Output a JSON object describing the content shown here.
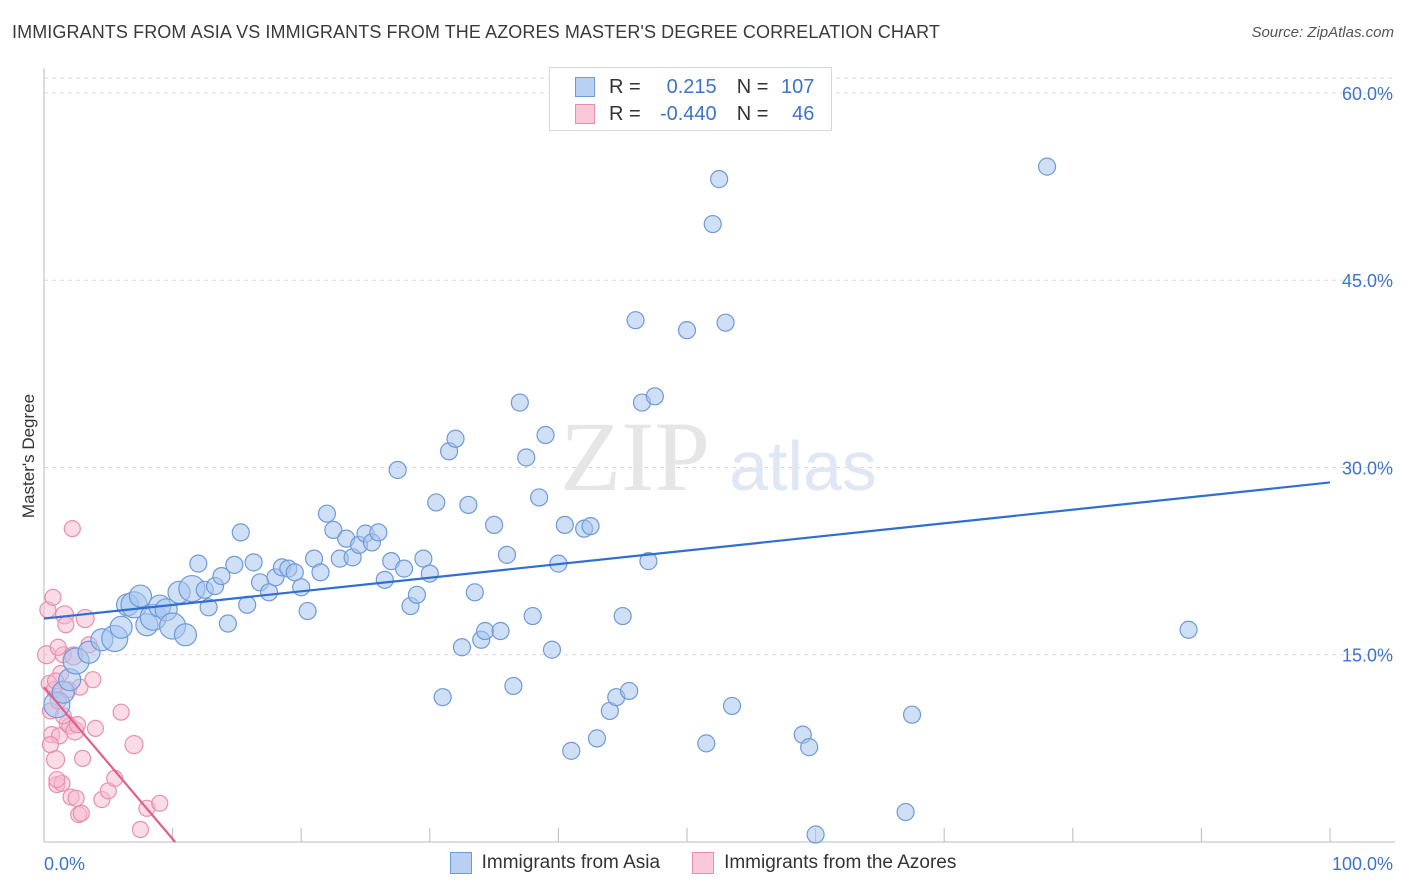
{
  "title": "IMMIGRANTS FROM ASIA VS IMMIGRANTS FROM THE AZORES MASTER'S DEGREE CORRELATION CHART",
  "source": "Source: ZipAtlas.com",
  "watermark": {
    "zip": "ZIP",
    "atlas": "atlas"
  },
  "legend": {
    "rows": [
      {
        "r_label": "R =",
        "r_value": "0.215",
        "n_label": "N =",
        "n_value": "107"
      },
      {
        "r_label": "R =",
        "r_value": "-0.440",
        "n_label": "N =",
        "n_value": "46"
      }
    ]
  },
  "colors": {
    "asia_fill": "#a8c4ee",
    "asia_stroke": "#6f9ad8",
    "asia_line": "#2f6fd0",
    "azores_fill": "#f6b8cd",
    "azores_stroke": "#e88fae",
    "azores_line": "#e0608c",
    "tick_text": "#3d74c9",
    "grid": "#d9d9d9"
  },
  "chart_data": {
    "type": "scatter",
    "title": "IMMIGRANTS FROM ASIA VS IMMIGRANTS FROM THE AZORES MASTER'S DEGREE CORRELATION CHART",
    "xlabel": "",
    "ylabel": "Master's Degree",
    "xlim": [
      0,
      100
    ],
    "ylim": [
      0,
      62
    ],
    "x_tick_labels": [
      "0.0%",
      "100.0%"
    ],
    "y_ticks": [
      15,
      30,
      45,
      60
    ],
    "y_tick_labels": [
      "15.0%",
      "30.0%",
      "45.0%",
      "60.0%"
    ],
    "grid": true,
    "series": [
      {
        "name": "Immigrants from Asia",
        "r": 0.215,
        "n": 107,
        "trend": {
          "x": [
            0,
            100
          ],
          "y": [
            17.9,
            28.8
          ]
        },
        "points": [
          [
            1.0,
            11.0
          ],
          [
            1.5,
            12.0
          ],
          [
            2.0,
            13.0
          ],
          [
            2.5,
            14.5
          ],
          [
            3.5,
            15.2
          ],
          [
            4.5,
            16.2
          ],
          [
            5.5,
            16.3
          ],
          [
            6.0,
            17.2
          ],
          [
            6.5,
            19.0
          ],
          [
            7.0,
            19.0
          ],
          [
            7.5,
            19.7
          ],
          [
            8.0,
            17.4
          ],
          [
            8.5,
            18.0
          ],
          [
            9.0,
            18.9
          ],
          [
            9.5,
            18.6
          ],
          [
            10.0,
            17.3
          ],
          [
            10.5,
            20.0
          ],
          [
            11.0,
            16.6
          ],
          [
            11.5,
            20.3
          ],
          [
            12.0,
            22.3
          ],
          [
            12.5,
            20.2
          ],
          [
            12.8,
            18.8
          ],
          [
            13.3,
            20.5
          ],
          [
            13.8,
            21.3
          ],
          [
            14.3,
            17.5
          ],
          [
            14.8,
            22.2
          ],
          [
            15.3,
            24.8
          ],
          [
            15.8,
            19.0
          ],
          [
            16.3,
            22.4
          ],
          [
            16.8,
            20.8
          ],
          [
            17.5,
            20.0
          ],
          [
            18.0,
            21.2
          ],
          [
            18.5,
            22.0
          ],
          [
            19.0,
            21.9
          ],
          [
            19.5,
            21.6
          ],
          [
            20.0,
            20.4
          ],
          [
            20.5,
            18.5
          ],
          [
            21.0,
            22.7
          ],
          [
            21.5,
            21.6
          ],
          [
            22.0,
            26.3
          ],
          [
            22.5,
            25.0
          ],
          [
            23.0,
            22.7
          ],
          [
            23.5,
            24.3
          ],
          [
            24.0,
            22.8
          ],
          [
            24.5,
            23.8
          ],
          [
            25.0,
            24.7
          ],
          [
            25.5,
            24.0
          ],
          [
            26.0,
            24.8
          ],
          [
            26.5,
            21.0
          ],
          [
            27.0,
            22.5
          ],
          [
            27.5,
            29.8
          ],
          [
            28.0,
            21.9
          ],
          [
            28.5,
            18.9
          ],
          [
            29.0,
            19.8
          ],
          [
            29.5,
            22.7
          ],
          [
            30.0,
            21.5
          ],
          [
            30.5,
            27.2
          ],
          [
            31.0,
            11.6
          ],
          [
            31.5,
            31.3
          ],
          [
            32.0,
            32.3
          ],
          [
            32.5,
            15.6
          ],
          [
            33.0,
            27.0
          ],
          [
            33.5,
            20.0
          ],
          [
            34.0,
            16.2
          ],
          [
            34.3,
            16.9
          ],
          [
            35.0,
            25.4
          ],
          [
            35.5,
            16.9
          ],
          [
            36.0,
            23.0
          ],
          [
            36.5,
            12.5
          ],
          [
            37.0,
            35.2
          ],
          [
            37.5,
            30.8
          ],
          [
            38.0,
            18.1
          ],
          [
            38.5,
            27.6
          ],
          [
            39.0,
            32.6
          ],
          [
            39.5,
            15.4
          ],
          [
            40.0,
            22.3
          ],
          [
            40.5,
            25.4
          ],
          [
            41.0,
            7.3
          ],
          [
            42.0,
            25.1
          ],
          [
            42.5,
            25.3
          ],
          [
            43.0,
            8.3
          ],
          [
            44.0,
            10.5
          ],
          [
            44.5,
            11.6
          ],
          [
            45.0,
            18.1
          ],
          [
            45.5,
            12.1
          ],
          [
            46.0,
            41.8
          ],
          [
            46.5,
            35.2
          ],
          [
            47.0,
            22.5
          ],
          [
            47.5,
            35.7
          ],
          [
            50.0,
            41.0
          ],
          [
            51.5,
            7.9
          ],
          [
            52.0,
            49.5
          ],
          [
            52.5,
            53.1
          ],
          [
            53.0,
            41.6
          ],
          [
            53.5,
            10.9
          ],
          [
            59.0,
            8.6
          ],
          [
            59.5,
            7.6
          ],
          [
            60.0,
            0.6
          ],
          [
            67.0,
            2.4
          ],
          [
            67.5,
            10.2
          ],
          [
            78.0,
            54.1
          ],
          [
            89.0,
            17.0
          ]
        ]
      },
      {
        "name": "Immigrants from the Azores",
        "r": -0.44,
        "n": 46,
        "trend": {
          "x": [
            0,
            10.2
          ],
          "y": [
            12.4,
            0
          ]
        },
        "points": [
          [
            0.2,
            15.0
          ],
          [
            0.3,
            18.6
          ],
          [
            0.4,
            12.7
          ],
          [
            0.5,
            10.5
          ],
          [
            0.6,
            8.6
          ],
          [
            0.7,
            19.6
          ],
          [
            0.8,
            12.2
          ],
          [
            0.9,
            6.6
          ],
          [
            1.0,
            4.6
          ],
          [
            1.1,
            11.3
          ],
          [
            1.2,
            8.5
          ],
          [
            1.3,
            13.5
          ],
          [
            1.4,
            4.7
          ],
          [
            1.5,
            15.0
          ],
          [
            1.6,
            18.2
          ],
          [
            1.7,
            17.4
          ],
          [
            1.8,
            9.5
          ],
          [
            1.9,
            12.2
          ],
          [
            2.0,
            9.3
          ],
          [
            2.1,
            3.6
          ],
          [
            2.2,
            25.1
          ],
          [
            2.4,
            8.9
          ],
          [
            2.5,
            3.5
          ],
          [
            2.6,
            9.4
          ],
          [
            2.7,
            2.2
          ],
          [
            2.8,
            12.4
          ],
          [
            2.9,
            2.3
          ],
          [
            3.0,
            6.7
          ],
          [
            3.2,
            17.9
          ],
          [
            3.5,
            15.8
          ],
          [
            4.0,
            9.1
          ],
          [
            4.5,
            3.4
          ],
          [
            5.0,
            4.1
          ],
          [
            5.5,
            5.1
          ],
          [
            6.0,
            10.4
          ],
          [
            7.0,
            7.8
          ],
          [
            7.5,
            1.0
          ],
          [
            8.0,
            2.7
          ],
          [
            9.0,
            3.1
          ],
          [
            1.0,
            5.0
          ],
          [
            1.5,
            10.1
          ],
          [
            0.5,
            7.8
          ],
          [
            2.3,
            14.9
          ],
          [
            1.1,
            15.6
          ],
          [
            3.8,
            13.0
          ],
          [
            0.9,
            12.9
          ]
        ]
      }
    ]
  },
  "bottom_legend": [
    "Immigrants from Asia",
    "Immigrants from the Azores"
  ]
}
